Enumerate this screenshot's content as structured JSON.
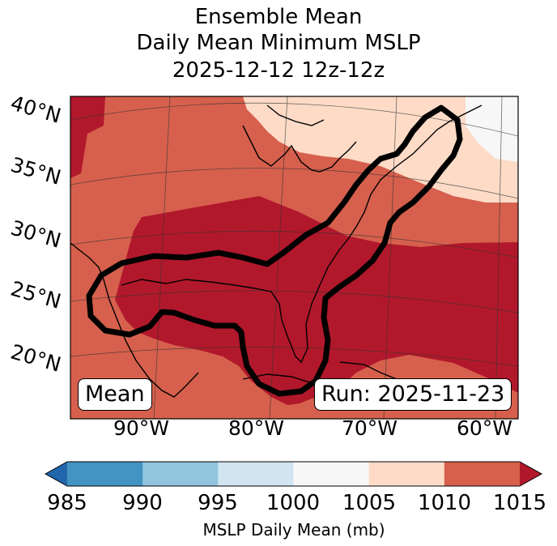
{
  "title": {
    "line1": "Ensemble Mean",
    "line2": "Daily Mean Minimum MSLP",
    "line3": "2025-12-12 12z-12z"
  },
  "map": {
    "lat_labels": [
      "40°N",
      "35°N",
      "30°N",
      "25°N",
      "20°N"
    ],
    "lon_labels": [
      "90°W",
      "80°W",
      "70°W",
      "60°W"
    ],
    "contour_color": "#000000",
    "land_colors": {
      "deep_red": "#b2182b",
      "red": "#d6604d",
      "light_orange": "#fddbc7",
      "near_white": "#f7f7f7"
    }
  },
  "annotations": {
    "mean_label": "Mean",
    "run_label": "Run: 2025-11-23"
  },
  "colorbar": {
    "title": "MSLP Daily Mean (mb)",
    "ticks": [
      "985",
      "990",
      "995",
      "1000",
      "1005",
      "1010",
      "1015"
    ],
    "colors": [
      "#2166ac",
      "#4393c3",
      "#92c5de",
      "#d1e5f0",
      "#f7f7f7",
      "#fddbc7",
      "#d6604d",
      "#b2182b"
    ]
  }
}
